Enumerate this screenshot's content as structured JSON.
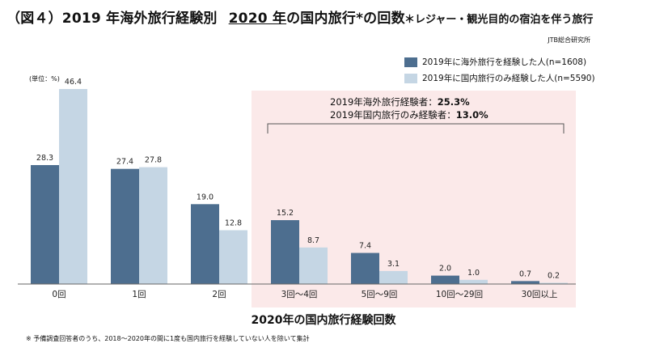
{
  "header": {
    "title_part1": "（図４）2019 年海外旅行経験別",
    "title_part2": "2020 年",
    "title_part3": "の国内旅行*の回数",
    "subtitle": "＊レジャー・観光目的の宿泊を伴う旅行",
    "source": "JTB総合研究所",
    "unit": "(単位：%)"
  },
  "annotation": {
    "line1_label": "2019年海外旅行経験者：",
    "line1_value": "25.3%",
    "line2_label": "2019年国内旅行のみ経験者：",
    "line2_value": "13.0%"
  },
  "footnote": "※ 予備調査回答者のうち、2018～2020年の間に1度も国内旅行を経験していない人を除いて集計",
  "colors": {
    "series1": "#4d6e8f",
    "series2": "#c5d6e4",
    "highlight": "#fbe9e9"
  },
  "chart_data": {
    "type": "bar",
    "title": "",
    "xlabel": "2020年の国内旅行経験回数",
    "ylabel": "",
    "ylim": [
      0,
      50
    ],
    "grid": false,
    "legend_position": "top-right",
    "categories": [
      "0回",
      "1回",
      "2回",
      "3回～4回",
      "5回～9回",
      "10回～29回",
      "30回以上"
    ],
    "series": [
      {
        "name": "2019年に海外旅行を経験した人(n=1608)",
        "values": [
          28.3,
          27.4,
          19.0,
          15.2,
          7.4,
          2.0,
          0.7
        ]
      },
      {
        "name": "2019年に国内旅行のみ経験した人(n=5590)",
        "values": [
          46.4,
          27.8,
          12.8,
          8.7,
          3.1,
          1.0,
          0.2
        ]
      }
    ],
    "value_labels": [
      [
        "28.3",
        "27.4",
        "19.0",
        "15.2",
        "7.4",
        "2.0",
        "0.7"
      ],
      [
        "46.4",
        "27.8",
        "12.8",
        "8.7",
        "3.1",
        "1.0",
        "0.2"
      ]
    ],
    "highlighted_categories": [
      "3回～4回",
      "5回～9回",
      "10回～29回",
      "30回以上"
    ]
  }
}
